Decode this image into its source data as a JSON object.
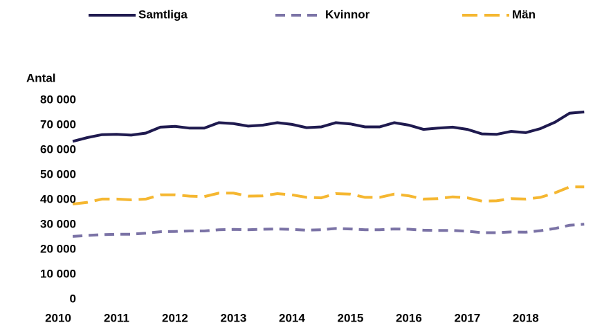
{
  "chart_data": {
    "type": "line",
    "y_label": "Antal",
    "x": [
      2010.25,
      2010.5,
      2010.75,
      2011,
      2011.25,
      2011.5,
      2011.75,
      2012,
      2012.25,
      2012.5,
      2012.75,
      2013,
      2013.25,
      2013.5,
      2013.75,
      2014,
      2014.25,
      2014.5,
      2014.75,
      2015,
      2015.25,
      2015.5,
      2015.75,
      2016,
      2016.25,
      2016.5,
      2016.75,
      2017,
      2017.25,
      2017.5,
      2017.75,
      2018,
      2018.25,
      2018.5,
      2018.75,
      2019
    ],
    "series": [
      {
        "name": "Samtliga",
        "color": "#1f1a4f",
        "dash": "none",
        "values": [
          63500,
          65000,
          66200,
          66300,
          66000,
          66800,
          69200,
          69500,
          68800,
          68800,
          71000,
          70600,
          69600,
          70000,
          71000,
          70300,
          69000,
          69300,
          71000,
          70500,
          69300,
          69300,
          71000,
          70000,
          68300,
          68800,
          69200,
          68300,
          66500,
          66300,
          67500,
          67000,
          68600,
          71200,
          74800,
          75300
        ]
      },
      {
        "name": "Kvinnor",
        "color": "#7b73a6",
        "dash": "14 9",
        "values": [
          25300,
          25700,
          26000,
          26200,
          26200,
          26600,
          27200,
          27300,
          27500,
          27500,
          28000,
          28100,
          28000,
          28200,
          28300,
          28100,
          27800,
          28000,
          28500,
          28300,
          28000,
          28000,
          28300,
          28200,
          27800,
          27700,
          27700,
          27400,
          26800,
          26800,
          27100,
          27000,
          27600,
          28500,
          29800,
          30200
        ]
      },
      {
        "name": "Män",
        "color": "#f5b731",
        "dash": "22 10",
        "values": [
          38300,
          39000,
          40300,
          40300,
          40000,
          40300,
          42000,
          42000,
          41500,
          41300,
          42700,
          42700,
          41500,
          41600,
          42500,
          42000,
          41000,
          40800,
          42500,
          42300,
          41000,
          41000,
          42300,
          41600,
          40300,
          40500,
          41200,
          40800,
          39500,
          39600,
          40500,
          40300,
          41000,
          42800,
          45200,
          45200
        ]
      }
    ],
    "xlim": [
      2010,
      2019.15
    ],
    "xticks": [
      2010,
      2011,
      2012,
      2013,
      2014,
      2015,
      2016,
      2017,
      2018
    ],
    "ylim": [
      0,
      80000
    ],
    "yticks": [
      0,
      {
        "value": 10000,
        "label": "10 000"
      },
      {
        "value": 20000,
        "label": "20 000"
      },
      {
        "value": 30000,
        "label": "30 000"
      },
      {
        "value": 40000,
        "label": "40 000"
      },
      {
        "value": 50000,
        "label": "50 000"
      },
      {
        "value": 60000,
        "label": "60 000"
      },
      {
        "value": 70000,
        "label": "70 000"
      },
      {
        "value": 80000,
        "label": "80 000"
      }
    ],
    "grid": false,
    "legend": "top"
  }
}
